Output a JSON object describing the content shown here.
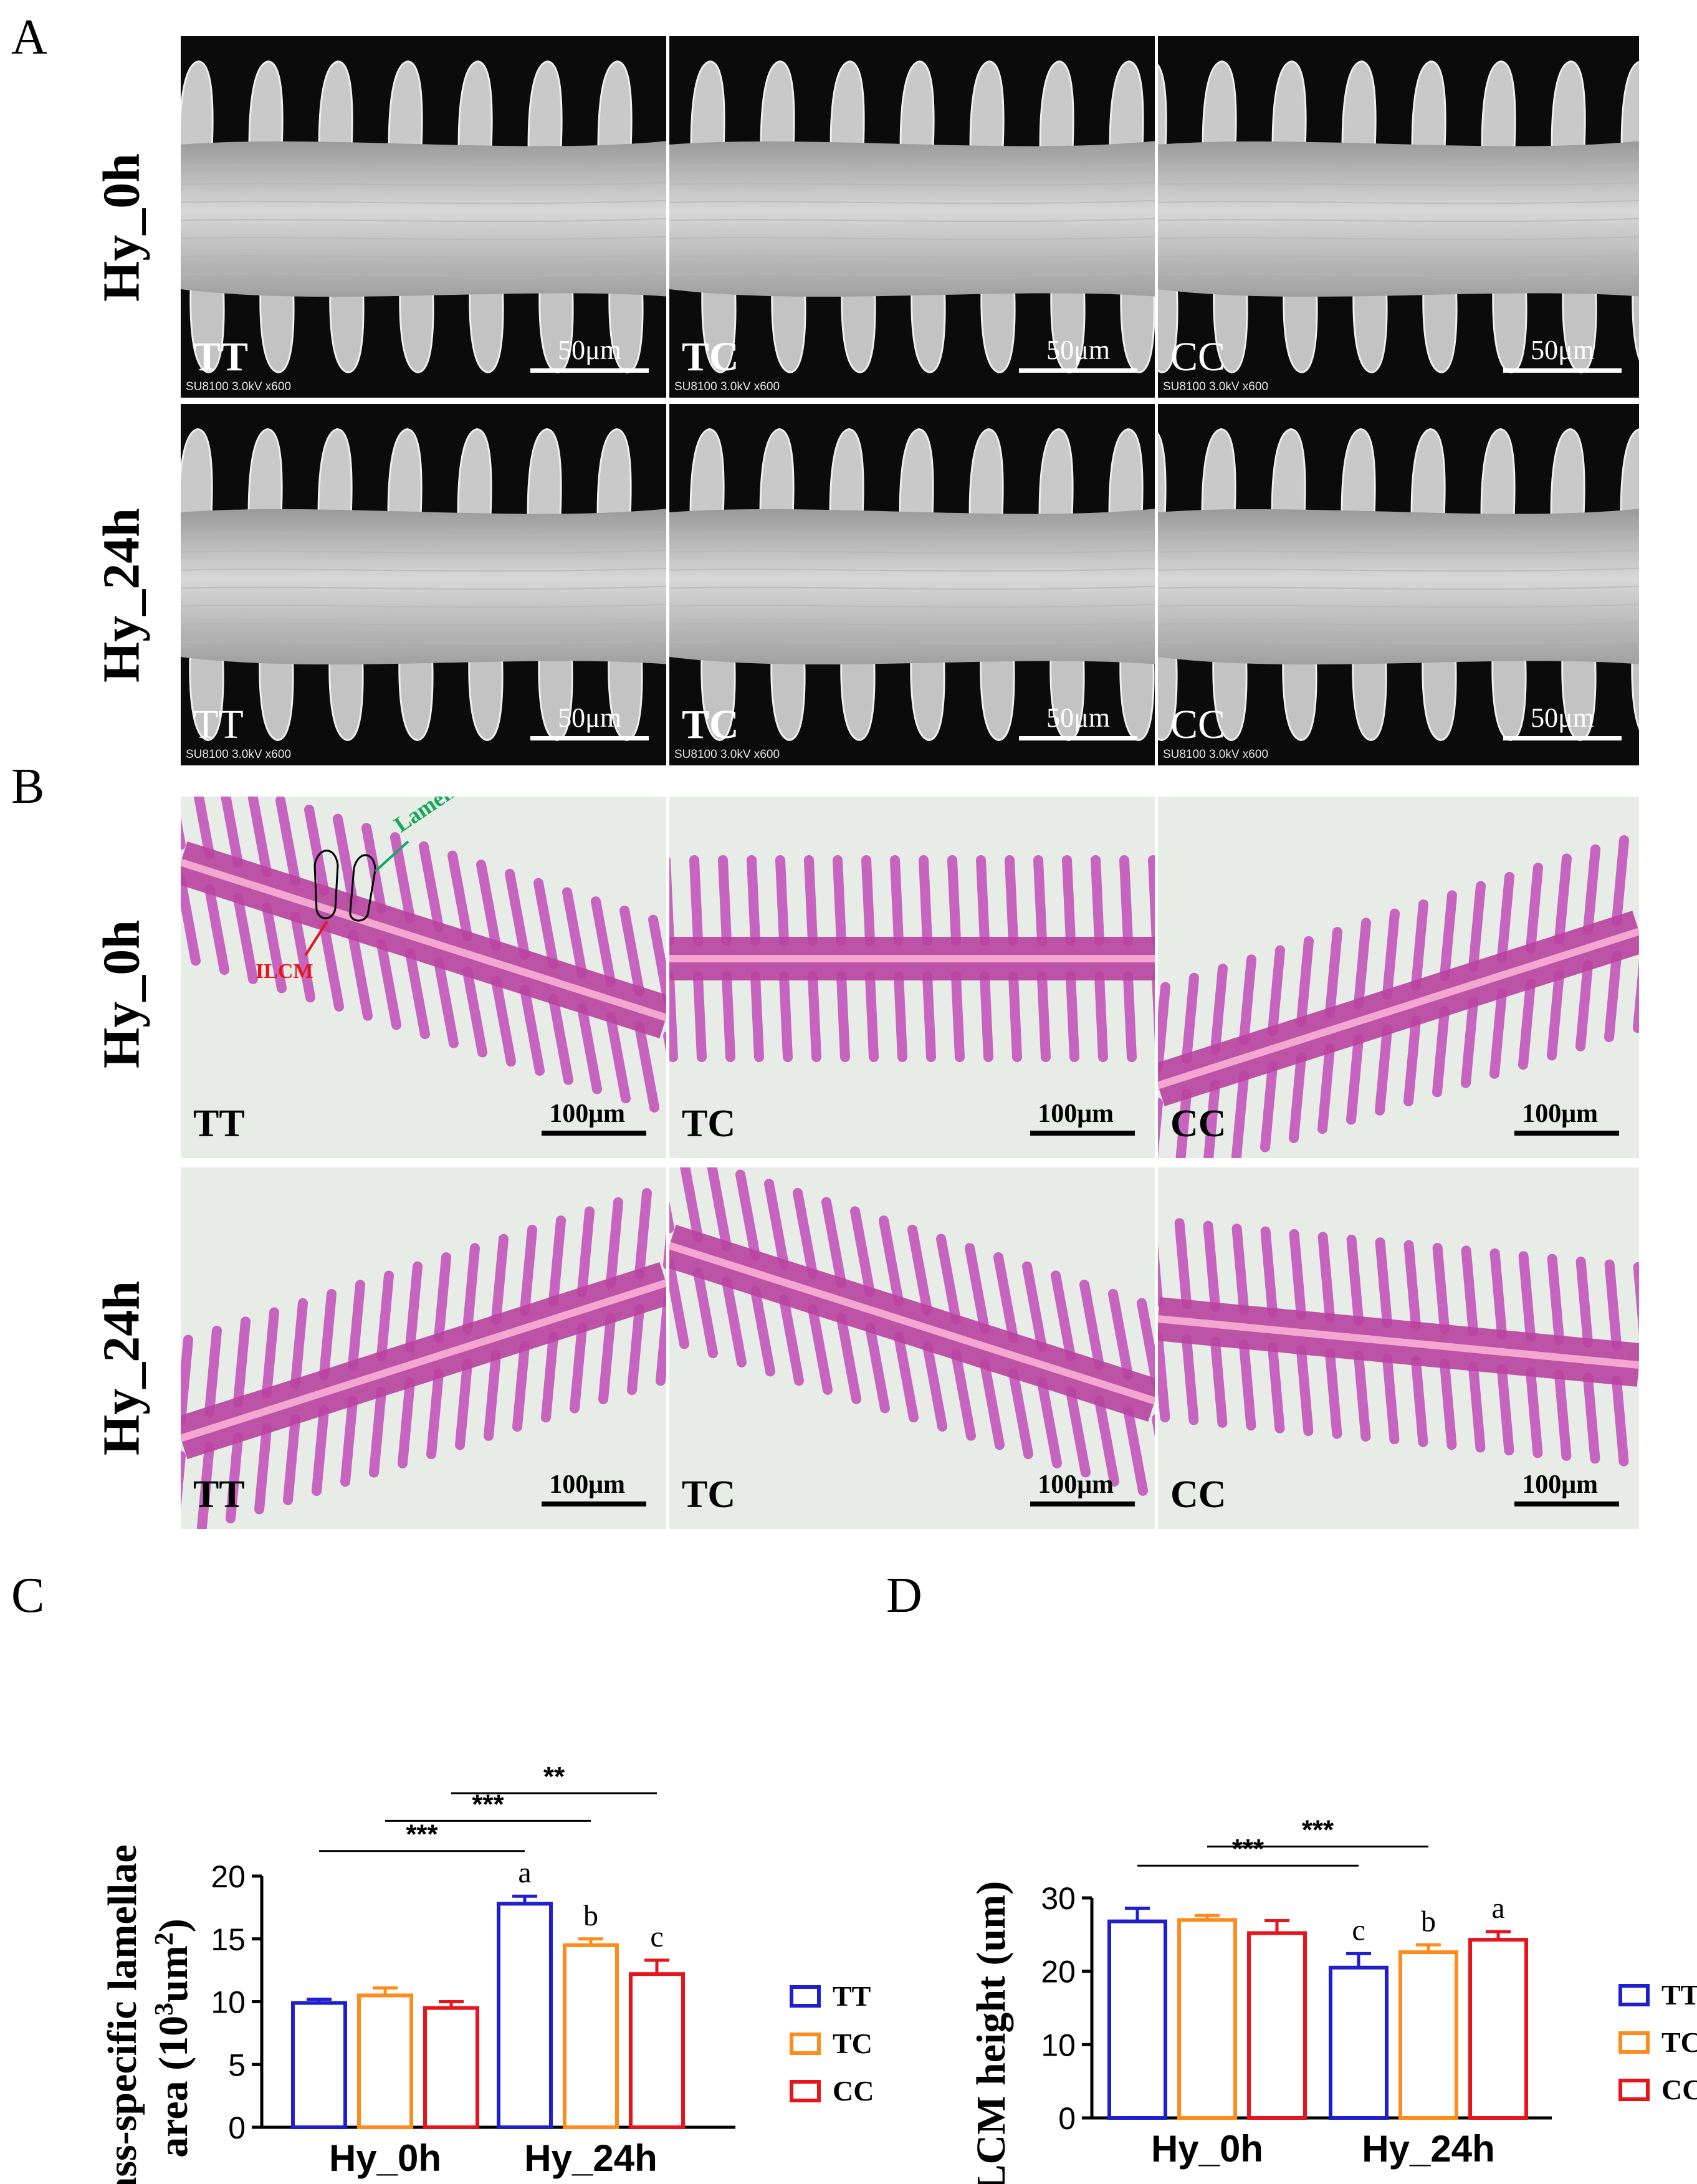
{
  "panel_letters": {
    "a": "A",
    "b": "B",
    "c": "C",
    "d": "D"
  },
  "panel_a": {
    "rows": [
      "Hy_0h",
      "Hy_24h"
    ],
    "tiles": [
      {
        "label": "TT",
        "scale": "50μm",
        "info": "SU8100 3.0kV x600"
      },
      {
        "label": "TC",
        "scale": "50μm",
        "info": "SU8100 3.0kV x600"
      },
      {
        "label": "CC",
        "scale": "50μm",
        "info": "SU8100 3.0kV x600"
      },
      {
        "label": "TT",
        "scale": "50μm",
        "info": "SU8100 3.0kV x600"
      },
      {
        "label": "TC",
        "scale": "50μm",
        "info": "SU8100 3.0kV x600"
      },
      {
        "label": "CC",
        "scale": "50μm",
        "info": "SU8100 3.0kV x600"
      }
    ]
  },
  "panel_b": {
    "rows": [
      "Hy_0h",
      "Hy_24h"
    ],
    "annotations": {
      "lamella": "Lamella",
      "ilcm": "ILCM",
      "lamella_color": "#14a85a",
      "ilcm_color": "#e8141c"
    },
    "tiles": [
      {
        "label": "TT",
        "scale": "100μm"
      },
      {
        "label": "TC",
        "scale": "100μm"
      },
      {
        "label": "CC",
        "scale": "100μm"
      },
      {
        "label": "TT",
        "scale": "100μm"
      },
      {
        "label": "TC",
        "scale": "100μm"
      },
      {
        "label": "CC",
        "scale": "100μm"
      }
    ]
  },
  "colors": {
    "TT": "#1f1fcf",
    "TC": "#ff8c1a",
    "CC": "#e8141c"
  },
  "chart_data": [
    {
      "panel": "C",
      "type": "bar",
      "ylabel_line1": "mass-specific lamellae",
      "ylabel_line2": "area (10",
      "ylabel_sup": "3",
      "ylabel_line2b": "um",
      "ylabel_sup2": "2",
      "ylabel_end": ")",
      "categories": [
        "Hy_0h",
        "Hy_24h"
      ],
      "ylim": [
        0,
        20
      ],
      "yticks": [
        0,
        5,
        10,
        15,
        20
      ],
      "series": [
        {
          "name": "TT",
          "values": [
            9.9,
            17.8
          ],
          "errors": [
            0.3,
            0.6
          ]
        },
        {
          "name": "TC",
          "values": [
            10.5,
            14.5
          ],
          "errors": [
            0.6,
            0.5
          ]
        },
        {
          "name": "CC",
          "values": [
            9.5,
            12.2
          ],
          "errors": [
            0.5,
            1.1
          ]
        }
      ],
      "letters": [
        [
          "",
          "a"
        ],
        [
          "",
          "b"
        ],
        [
          "",
          "c"
        ]
      ],
      "significance": [
        {
          "label": "***",
          "from": [
            0,
            0
          ],
          "to": [
            1,
            0
          ],
          "y": 22.0
        },
        {
          "label": "***",
          "from": [
            0,
            1
          ],
          "to": [
            1,
            1
          ],
          "y": 24.4
        },
        {
          "label": "**",
          "from": [
            0,
            2
          ],
          "to": [
            1,
            2
          ],
          "y": 26.6
        }
      ]
    },
    {
      "panel": "D",
      "type": "bar",
      "ylabel_line1": "ILCM height (um)",
      "categories": [
        "Hy_0h",
        "Hy_24h"
      ],
      "ylim": [
        0,
        30
      ],
      "yticks": [
        0,
        10,
        20,
        30
      ],
      "series": [
        {
          "name": "TT",
          "values": [
            26.8,
            20.5
          ],
          "errors": [
            1.8,
            1.9
          ]
        },
        {
          "name": "TC",
          "values": [
            27.0,
            22.6
          ],
          "errors": [
            0.6,
            1.0
          ]
        },
        {
          "name": "CC",
          "values": [
            25.2,
            24.3
          ],
          "errors": [
            1.7,
            1.1
          ]
        }
      ],
      "letters": [
        [
          "",
          "c"
        ],
        [
          "",
          "b"
        ],
        [
          "",
          "a"
        ]
      ],
      "significance": [
        {
          "label": "***",
          "from": [
            0,
            0
          ],
          "to": [
            1,
            0
          ],
          "y": 34.4
        },
        {
          "label": "***",
          "from": [
            0,
            1
          ],
          "to": [
            1,
            1
          ],
          "y": 37.0
        }
      ]
    }
  ]
}
